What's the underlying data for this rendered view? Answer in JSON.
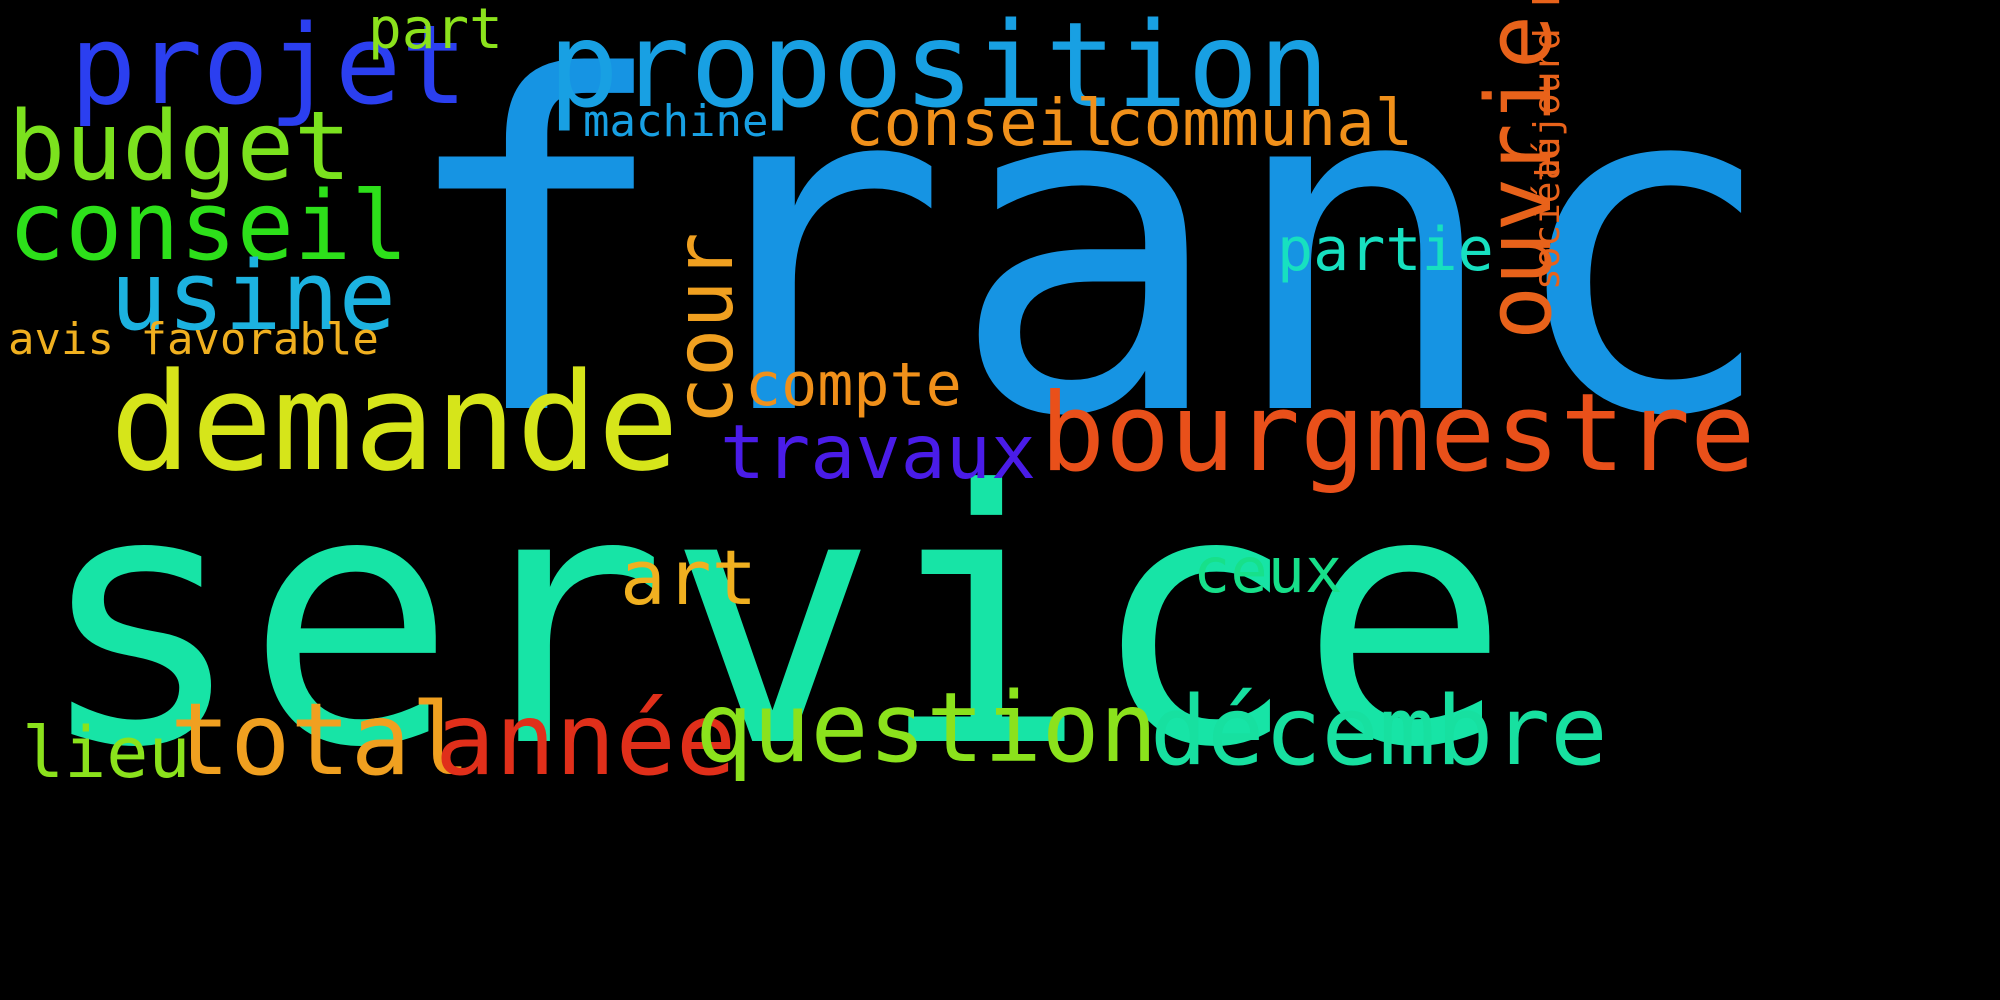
{
  "background": "#000000",
  "words": [
    {
      "text": "service",
      "color": "#17e4a6"
    },
    {
      "text": "franc",
      "color": "#1694e3"
    },
    {
      "text": "proposition",
      "color": "#18a0e3"
    },
    {
      "text": "demande",
      "color": "#d6e51a"
    },
    {
      "text": "bourgmestre",
      "color": "#e9501a"
    },
    {
      "text": "projet",
      "color": "#2b3ff0"
    },
    {
      "text": "budget",
      "color": "#7be21e"
    },
    {
      "text": "conseil",
      "color": "#2de01a"
    },
    {
      "text": "usine",
      "color": "#1cb2e0"
    },
    {
      "text": "total",
      "color": "#f0a020"
    },
    {
      "text": "année",
      "color": "#e02f1a"
    },
    {
      "text": "question",
      "color": "#8be21c"
    },
    {
      "text": "décembre",
      "color": "#17e0a0"
    },
    {
      "text": "travaux",
      "color": "#4a1ce8"
    },
    {
      "text": "ouvrier",
      "color": "#e8621a"
    },
    {
      "text": "cour",
      "color": "#f0a020"
    },
    {
      "text": "conseil",
      "color": "#f0901a"
    },
    {
      "text": "communal",
      "color": "#f0901a"
    },
    {
      "text": "compte",
      "color": "#f0901a"
    },
    {
      "text": "art",
      "color": "#f0b020"
    },
    {
      "text": "lieu",
      "color": "#8be21c"
    },
    {
      "text": "avis favorable",
      "color": "#f0b020"
    },
    {
      "text": "part",
      "color": "#8be21c"
    },
    {
      "text": "partie",
      "color": "#17e0c0"
    },
    {
      "text": "ceux",
      "color": "#17e08a"
    },
    {
      "text": "machine",
      "color": "#18a0e3"
    },
    {
      "text": "société",
      "color": "#e8621a"
    },
    {
      "text": "aujourd hui",
      "color": "#e8621a"
    }
  ]
}
